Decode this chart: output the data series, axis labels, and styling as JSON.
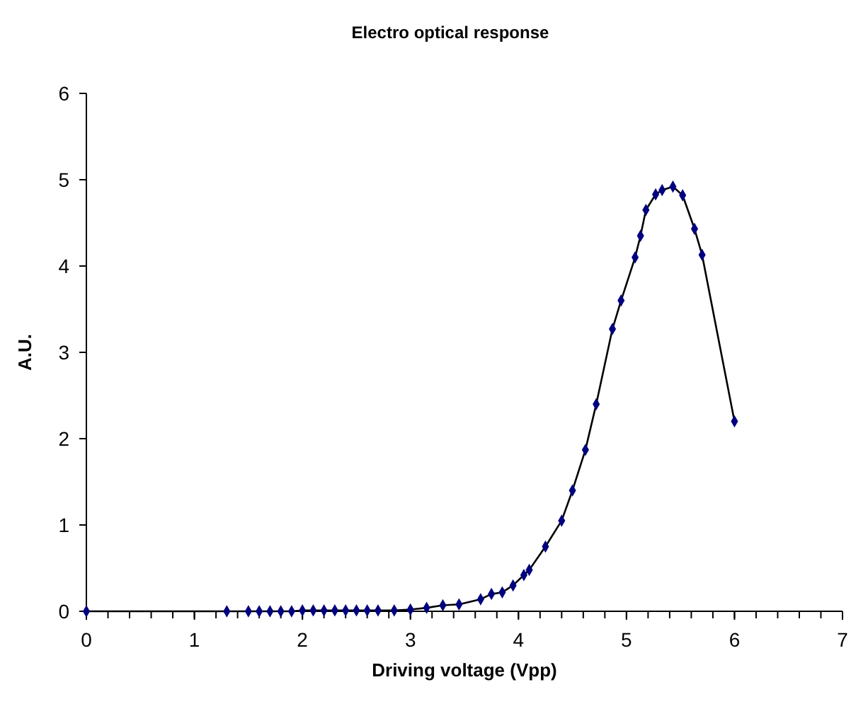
{
  "chart_data": {
    "type": "line",
    "title": "Electro optical response",
    "xlabel": "Driving voltage (Vpp)",
    "ylabel": "A.U.",
    "x": [
      0,
      1.3,
      1.5,
      1.6,
      1.7,
      1.8,
      1.9,
      2.0,
      2.1,
      2.2,
      2.3,
      2.4,
      2.5,
      2.6,
      2.7,
      2.85,
      3.0,
      3.15,
      3.3,
      3.45,
      3.65,
      3.75,
      3.85,
      3.95,
      4.05,
      4.1,
      4.25,
      4.4,
      4.5,
      4.62,
      4.72,
      4.87,
      4.95,
      5.08,
      5.13,
      5.18,
      5.27,
      5.33,
      5.43,
      5.52,
      5.63,
      5.7,
      6.0
    ],
    "series": [
      {
        "color": "#000080",
        "values": [
          0,
          0,
          0,
          0,
          0,
          0,
          0,
          0.01,
          0.01,
          0.01,
          0.01,
          0.01,
          0.01,
          0.01,
          0.01,
          0.01,
          0.02,
          0.04,
          0.07,
          0.08,
          0.14,
          0.2,
          0.22,
          0.3,
          0.42,
          0.48,
          0.75,
          1.05,
          1.4,
          1.87,
          2.4,
          3.27,
          3.6,
          4.1,
          4.35,
          4.65,
          4.83,
          4.88,
          4.92,
          4.82,
          4.43,
          4.13,
          2.2
        ]
      }
    ],
    "xlim": [
      0,
      7
    ],
    "xticks": [
      0,
      1,
      2,
      3,
      4,
      5,
      6,
      7
    ],
    "ylim": [
      0,
      6
    ],
    "yticks": [
      0,
      1,
      2,
      3,
      4,
      5,
      6
    ],
    "marker": "diamond"
  }
}
